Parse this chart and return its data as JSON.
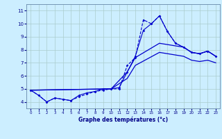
{
  "xlabel": "Graphe des températures (°c)",
  "bg_color": "#cceeff",
  "line_color": "#0000cc",
  "grid_color": "#aacccc",
  "xlim": [
    -0.5,
    23.5
  ],
  "ylim": [
    3.5,
    11.5
  ],
  "yticks": [
    4,
    5,
    6,
    7,
    8,
    9,
    10,
    11
  ],
  "xticks": [
    0,
    1,
    2,
    3,
    4,
    5,
    6,
    7,
    8,
    9,
    10,
    11,
    12,
    13,
    14,
    15,
    16,
    17,
    18,
    19,
    20,
    21,
    22,
    23
  ],
  "line1_x": [
    0,
    1,
    2,
    3,
    4,
    5,
    6,
    7,
    8,
    9,
    10,
    11,
    12,
    13,
    14,
    15,
    16,
    17,
    18,
    19,
    20,
    21,
    22,
    23
  ],
  "line1_y": [
    4.9,
    4.5,
    4.0,
    4.3,
    4.2,
    4.1,
    4.4,
    4.6,
    4.8,
    4.9,
    5.0,
    5.0,
    6.8,
    7.4,
    10.3,
    10.0,
    10.6,
    9.4,
    8.5,
    8.2,
    7.8,
    7.7,
    7.9,
    7.5
  ],
  "line2_x": [
    0,
    1,
    2,
    3,
    4,
    5,
    6,
    7,
    8,
    9,
    10,
    11,
    12,
    13,
    14,
    15,
    16,
    17,
    18,
    19,
    20,
    21,
    22,
    23
  ],
  "line2_y": [
    4.9,
    4.5,
    4.0,
    4.3,
    4.2,
    4.1,
    4.5,
    4.7,
    4.8,
    5.0,
    5.0,
    5.1,
    6.3,
    7.5,
    9.5,
    10.0,
    10.6,
    9.4,
    8.5,
    8.2,
    7.8,
    7.7,
    7.9,
    7.5
  ],
  "line3_x": [
    0,
    10,
    12,
    13,
    16,
    19,
    20,
    21,
    22,
    23
  ],
  "line3_y": [
    4.9,
    5.0,
    6.3,
    7.4,
    8.5,
    8.2,
    7.8,
    7.7,
    7.9,
    7.5
  ],
  "line4_x": [
    0,
    10,
    12,
    13,
    16,
    19,
    20,
    21,
    22,
    23
  ],
  "line4_y": [
    4.9,
    5.0,
    5.8,
    6.8,
    7.8,
    7.5,
    7.2,
    7.1,
    7.2,
    7.0
  ]
}
